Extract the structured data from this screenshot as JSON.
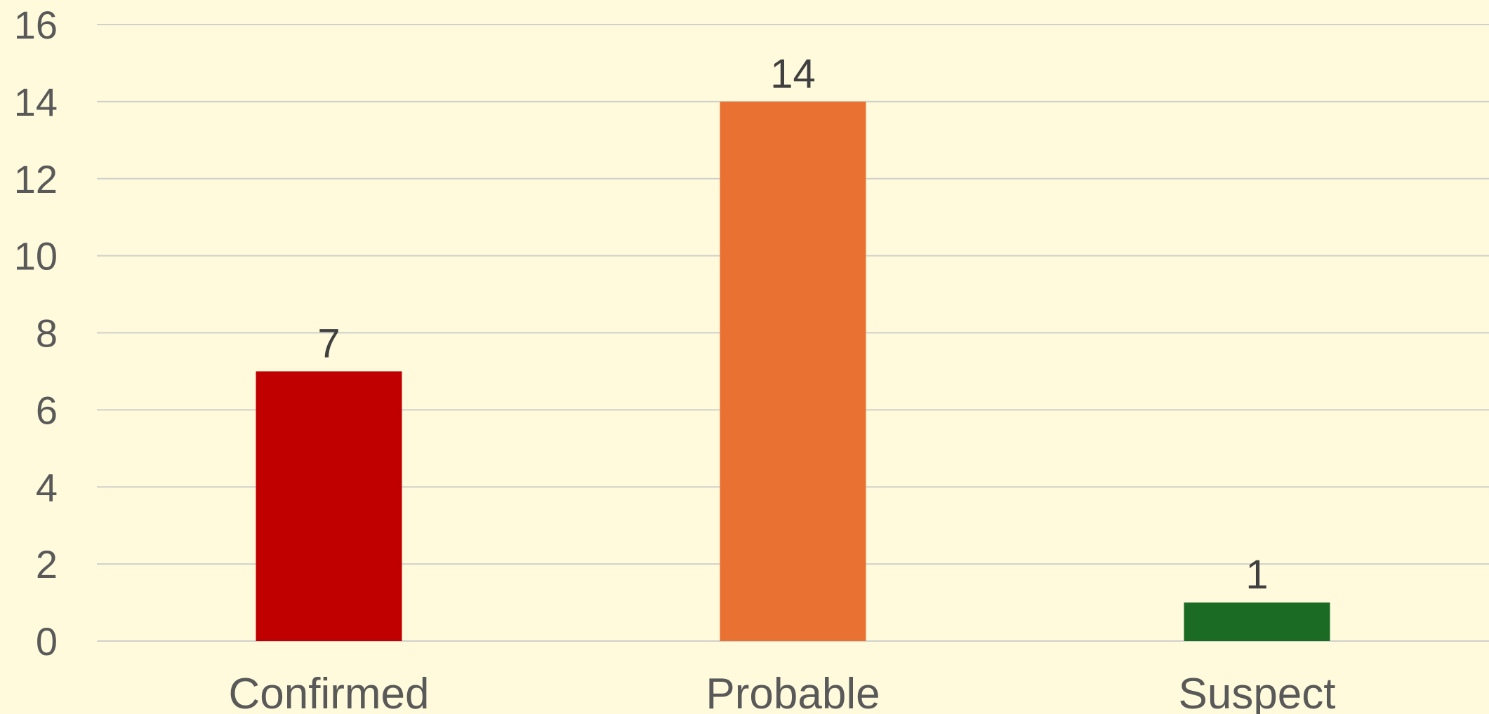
{
  "chart_data": {
    "type": "bar",
    "categories": [
      "Confirmed",
      "Probable",
      "Suspect"
    ],
    "values": [
      7,
      14,
      1
    ],
    "data_labels": [
      "7",
      "14",
      "1"
    ],
    "bar_colors": [
      "#C00000",
      "#E97132",
      "#1C6B25"
    ],
    "ylim": [
      0,
      16
    ],
    "yticks": [
      "0",
      "2",
      "4",
      "6",
      "8",
      "10",
      "12",
      "14",
      "16"
    ],
    "ytick_values": [
      0,
      2,
      4,
      6,
      8,
      10,
      12,
      14,
      16
    ],
    "title": "",
    "xlabel": "",
    "ylabel": "",
    "grid": true,
    "legend": "none",
    "background": "#FEFADB",
    "gridline_color": "#D0D0CC"
  }
}
